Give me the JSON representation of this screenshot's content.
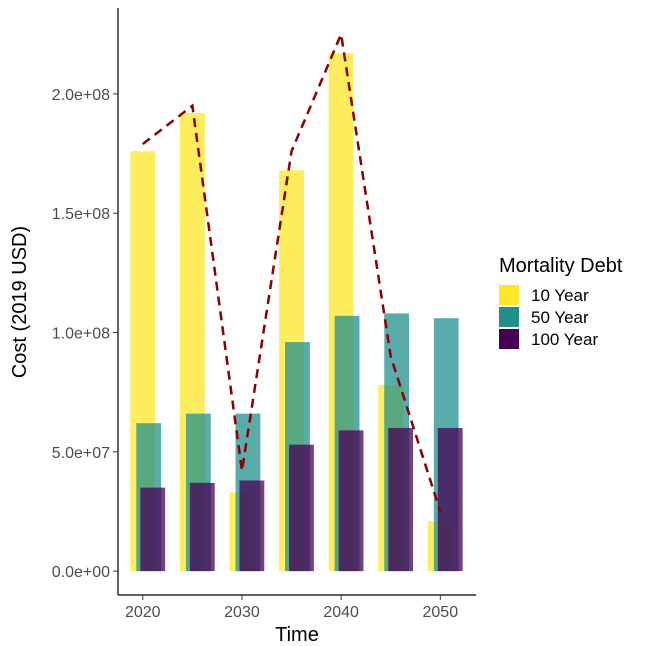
{
  "chart_data": {
    "type": "bar",
    "title": "",
    "xlabel": "Time",
    "ylabel": "Cost (2019 USD)",
    "x_ticks": [
      "2020",
      "2030",
      "2040",
      "2050"
    ],
    "y_ticks": [
      "0.0e+00",
      "5.0e+07",
      "1.0e+08",
      "1.5e+08",
      "2.0e+08"
    ],
    "ylim": [
      -10000000,
      236000000
    ],
    "xlim": [
      2017.5,
      2053.6
    ],
    "legend_title": "Mortality Debt",
    "legend_position": "right",
    "x": [
      2020,
      2025,
      2030,
      2035,
      2040,
      2045,
      2050
    ],
    "series": [
      {
        "name": "10 Year",
        "color": "#FDE725",
        "offset": 0,
        "values": [
          176000000,
          192000000,
          33000000,
          168000000,
          217000000,
          78000000,
          21000000
        ]
      },
      {
        "name": "50 Year",
        "color": "#21908C",
        "offset": 0.6,
        "values": [
          62000000,
          66000000,
          66000000,
          96000000,
          107000000,
          108000000,
          106000000
        ]
      },
      {
        "name": "100 Year",
        "color": "#440154",
        "offset": 1.0,
        "values": [
          35000000,
          37000000,
          38000000,
          53000000,
          59000000,
          60000000,
          60000000
        ]
      }
    ],
    "total_line": {
      "color": "#8B0000",
      "x": [
        2020,
        2025,
        2030,
        2035,
        2040,
        2045,
        2050
      ],
      "values": [
        179000000,
        195000000,
        42000000,
        176000000,
        225000000,
        90000000,
        25000000
      ]
    }
  }
}
